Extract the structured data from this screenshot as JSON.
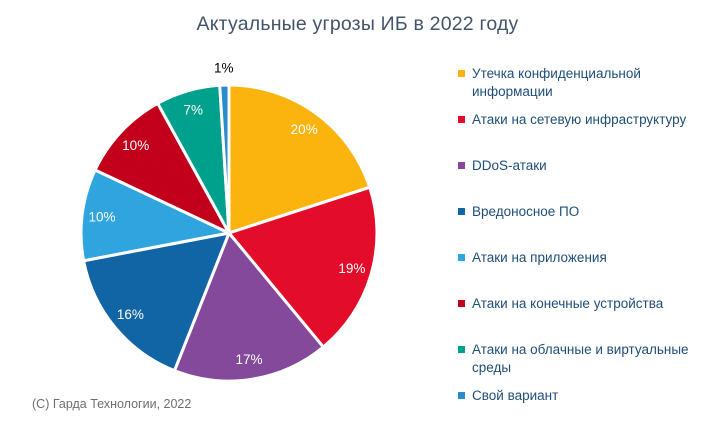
{
  "title": "Актуальные угрозы ИБ в 2022 году",
  "footer": "(С) Гарда Технологии, 2022",
  "colors": {
    "background": "#FFFFFF",
    "title_text": "#44546A",
    "legend_text": "#1F4E79",
    "footer_text": "#6E6E6E",
    "slice_label_text": "#FFFFFF",
    "outside_label_text": "#000000",
    "slice_separator": "#FFFFFF"
  },
  "chart_data": {
    "type": "pie",
    "title": "Актуальные угрозы ИБ в 2022 году",
    "values_unit": "%",
    "total": 100,
    "start_angle_deg": 0,
    "direction": "clockwise",
    "legend_position": "right",
    "data_labels": "percent values, inside-end in white; 1% slice labeled outside in black",
    "slices": [
      {
        "label": "Утечка конфиденциальной информации",
        "legend_lines": [
          "Утечка конфиденциальной",
          "информации"
        ],
        "value": 20,
        "color": "#FAB40D"
      },
      {
        "label": "Атаки на сетевую инфраструктуру",
        "value": 19,
        "color": "#E30C2B"
      },
      {
        "label": "DDoS-атаки",
        "value": 17,
        "color": "#84499B"
      },
      {
        "label": "Вредоносное ПО",
        "value": 16,
        "color": "#1165A5"
      },
      {
        "label": "Атаки на приложения",
        "value": 10,
        "color": "#30A4DE"
      },
      {
        "label": "Атаки на конечные устройства",
        "value": 10,
        "color": "#C2001B"
      },
      {
        "label": "Атаки на облачные и виртуальные среды",
        "legend_lines": [
          "Атаки на облачные и виртуальные",
          "среды"
        ],
        "value": 7,
        "color": "#00A18C"
      },
      {
        "label": "Свой вариант",
        "value": 1,
        "color": "#2A8CC9"
      }
    ]
  }
}
